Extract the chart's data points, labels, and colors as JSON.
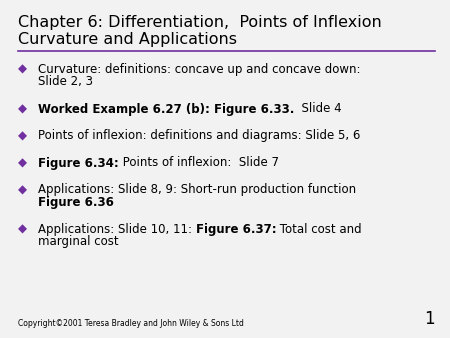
{
  "title_line1": "Chapter 6: Differentiation,  Points of Inflexion",
  "title_line2": "Curvature and Applications",
  "title_color": "#000000",
  "title_fontsize": 11.5,
  "separator_color": "#7030A0",
  "background_color": "#f2f2f2",
  "bullet_color": "#7030A0",
  "bullet_char": "◆",
  "copyright": "Copyright©2001 Teresa Bradley and John Wiley & Sons Ltd",
  "page_number": "1",
  "bullets": [
    {
      "lines": [
        [
          {
            "text": "Curvature: definitions: concave up and concave down:",
            "bold": false
          }
        ],
        [
          {
            "text": "Slide 2, 3",
            "bold": false
          }
        ]
      ]
    },
    {
      "lines": [
        [
          {
            "text": "Worked Example 6.27 (b): Figure 6.33.",
            "bold": true
          },
          {
            "text": "  Slide 4",
            "bold": false
          }
        ]
      ]
    },
    {
      "lines": [
        [
          {
            "text": "Points of inflexion: definitions and diagrams: Slide 5, 6",
            "bold": false
          }
        ]
      ]
    },
    {
      "lines": [
        [
          {
            "text": "Figure 6.34:",
            "bold": true
          },
          {
            "text": " Points of inflexion:  Slide 7",
            "bold": false
          }
        ]
      ]
    },
    {
      "lines": [
        [
          {
            "text": "Applications: Slide 8, 9: Short-run production function",
            "bold": false
          }
        ],
        [
          {
            "text": "Figure 6.36",
            "bold": true
          }
        ]
      ]
    },
    {
      "lines": [
        [
          {
            "text": "Applications: Slide 10, 11: ",
            "bold": false
          },
          {
            "text": "Figure 6.37:",
            "bold": true
          },
          {
            "text": " Total cost and",
            "bold": false
          }
        ],
        [
          {
            "text": "marginal cost",
            "bold": false
          }
        ]
      ]
    }
  ],
  "body_fontsize": 8.5,
  "copyright_fontsize": 5.5,
  "page_num_fontsize": 12,
  "fig_width": 4.5,
  "fig_height": 3.38,
  "fig_dpi": 100
}
